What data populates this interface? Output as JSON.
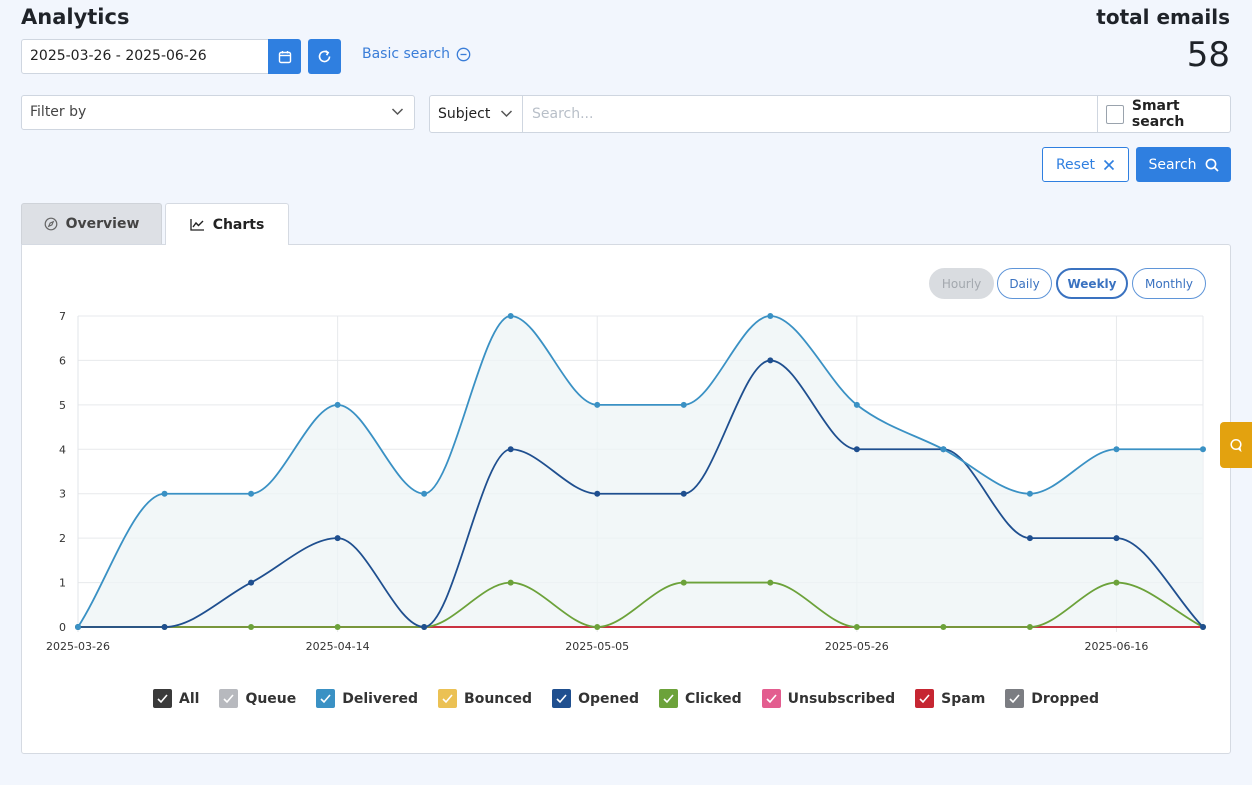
{
  "header": {
    "title": "Analytics",
    "total_label": "total emails",
    "total_value": "58"
  },
  "toolbar": {
    "date_range": "2025-03-26 - 2025-06-26",
    "basic_search_label": "Basic search"
  },
  "filters": {
    "filter_placeholder": "Filter by",
    "field_select": "Subject",
    "search_placeholder": "Search...",
    "smart_search_label": "Smart search",
    "reset_label": "Reset",
    "search_label": "Search"
  },
  "tabs": [
    {
      "label": "Overview"
    },
    {
      "label": "Charts"
    }
  ],
  "granularity": {
    "options": [
      "Hourly",
      "Daily",
      "Weekly",
      "Monthly"
    ],
    "selected": "Weekly",
    "disabled": "Hourly"
  },
  "legend": [
    {
      "name": "All",
      "color": "#3a3a3a"
    },
    {
      "name": "Queue",
      "color": "#b7b9be"
    },
    {
      "name": "Delivered",
      "color": "#3a91c4"
    },
    {
      "name": "Bounced",
      "color": "#ebc154"
    },
    {
      "name": "Opened",
      "color": "#1f4f8f"
    },
    {
      "name": "Clicked",
      "color": "#6ca23a"
    },
    {
      "name": "Unsubscribed",
      "color": "#e35d8f"
    },
    {
      "name": "Spam",
      "color": "#c62632"
    },
    {
      "name": "Dropped",
      "color": "#7b7d82"
    }
  ],
  "chart_data": {
    "type": "line",
    "x": [
      "2025-03-26",
      "2025-04-02",
      "2025-04-09",
      "2025-04-14",
      "2025-04-21",
      "2025-04-28",
      "2025-05-05",
      "2025-05-12",
      "2025-05-19",
      "2025-05-26",
      "2025-06-02",
      "2025-06-09",
      "2025-06-16",
      "2025-06-23"
    ],
    "x_ticks": [
      "2025-03-26",
      "2025-04-14",
      "2025-05-05",
      "2025-05-26",
      "2025-06-16"
    ],
    "ylim": [
      0,
      7
    ],
    "y_ticks": [
      0,
      1,
      2,
      3,
      4,
      5,
      6,
      7
    ],
    "grid": true,
    "series": [
      {
        "name": "Delivered",
        "color": "#3a91c4",
        "fill": true,
        "values": [
          0,
          3,
          3,
          5,
          3,
          7,
          5,
          5,
          7,
          5,
          4,
          3,
          4,
          4
        ]
      },
      {
        "name": "Opened",
        "color": "#1f4f8f",
        "values": [
          0,
          0,
          1,
          2,
          0,
          4,
          3,
          3,
          6,
          4,
          4,
          2,
          2,
          0
        ]
      },
      {
        "name": "Clicked",
        "color": "#6ca23a",
        "values": [
          0,
          0,
          0,
          0,
          0,
          1,
          0,
          1,
          1,
          0,
          0,
          0,
          1,
          0
        ]
      },
      {
        "name": "Spam",
        "color": "#c62632",
        "values": [
          0,
          0,
          0,
          0,
          0,
          0,
          0,
          0,
          0,
          0,
          0,
          0,
          0,
          0
        ]
      },
      {
        "name": "Unsubscribed",
        "color": "#e35d8f",
        "values": [
          0,
          0,
          0,
          0,
          0,
          0,
          0,
          0,
          0,
          0,
          0,
          0,
          0,
          0
        ]
      }
    ]
  }
}
